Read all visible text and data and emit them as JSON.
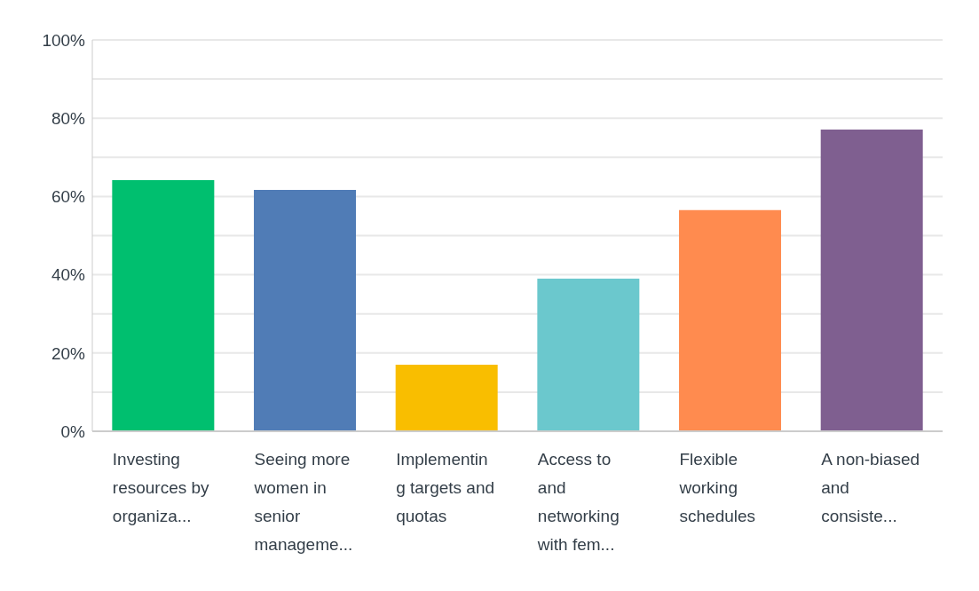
{
  "chart_data": {
    "type": "bar",
    "categories": [
      "Investing resources by organiza...",
      "Seeing more women in senior manageme...",
      "Implementing targets and quotas",
      "Access to and networking with fem...",
      "Flexible working schedules",
      "A non-biased and consiste..."
    ],
    "values": [
      64.2,
      61.7,
      17.0,
      39.0,
      56.5,
      77.1
    ],
    "colors": [
      "#00bf6f",
      "#507cb6",
      "#f9be00",
      "#6bc8cd",
      "#ff8b4f",
      "#7f5f90"
    ],
    "ylim": [
      0,
      100
    ],
    "yticks": [
      {
        "value": 0,
        "label": "0%"
      },
      {
        "value": 10,
        "label": null
      },
      {
        "value": 20,
        "label": "20%"
      },
      {
        "value": 30,
        "label": null
      },
      {
        "value": 40,
        "label": "40%"
      },
      {
        "value": 50,
        "label": null
      },
      {
        "value": 60,
        "label": "60%"
      },
      {
        "value": 70,
        "label": null
      },
      {
        "value": 80,
        "label": "80%"
      },
      {
        "value": 90,
        "label": null
      },
      {
        "value": 100,
        "label": "100%"
      }
    ],
    "grid": "y"
  }
}
